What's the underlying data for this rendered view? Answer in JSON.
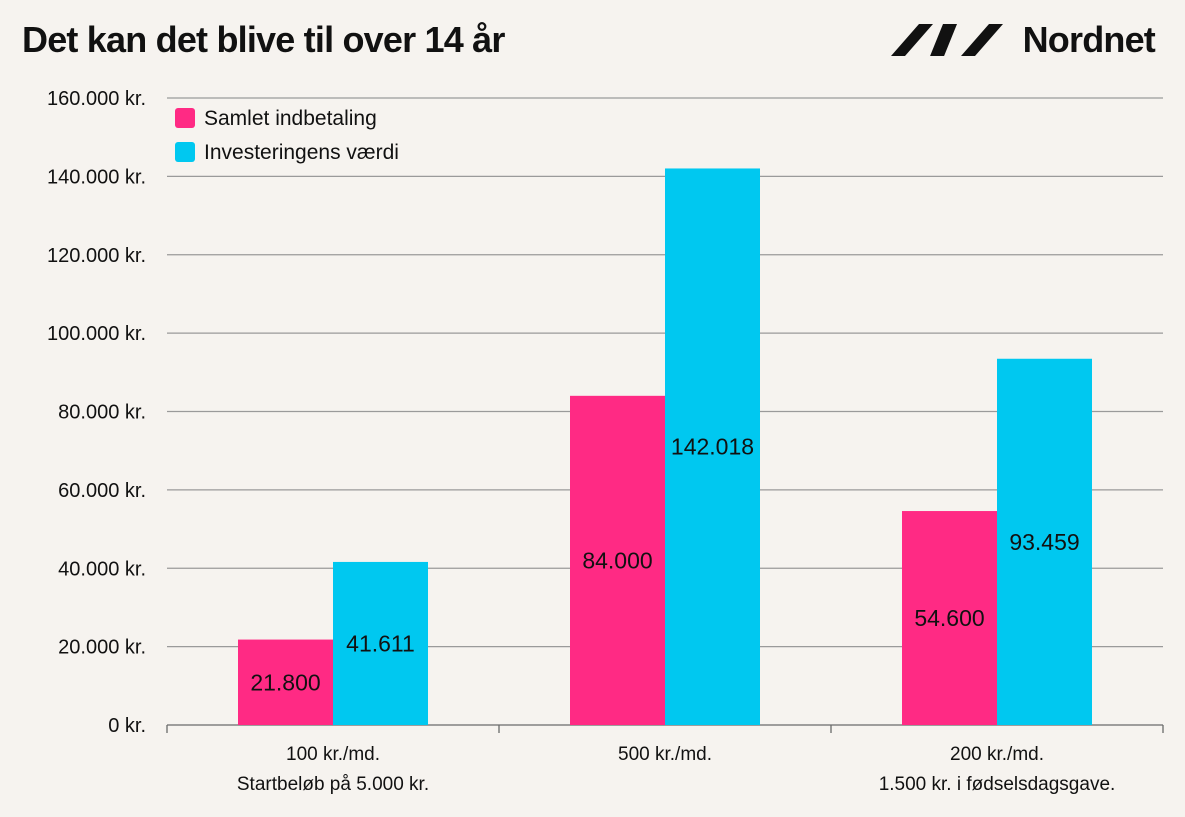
{
  "header": {
    "title": "Det kan det blive til over 14 år",
    "brand": "Nordnet",
    "logo_icon": "nordnet-logo-mark"
  },
  "colors": {
    "background": "#f6f3ef",
    "paid": "#ff2a84",
    "value": "#00c8f0",
    "grid": "#9a9a9a",
    "axis": "#6a6a6a"
  },
  "chart_data": {
    "type": "bar",
    "title": "Det kan det blive til over 14 år",
    "xlabel": "",
    "ylabel": "",
    "ylim": [
      0,
      160000
    ],
    "yticks": [
      0,
      20000,
      40000,
      60000,
      80000,
      100000,
      120000,
      140000,
      160000
    ],
    "ytick_labels": [
      "0 kr.",
      "20.000 kr.",
      "40.000 kr.",
      "60.000 kr.",
      "80.000 kr.",
      "100.000 kr.",
      "120.000 kr.",
      "140.000 kr.",
      "160.000 kr."
    ],
    "categories": [
      [
        "100 kr./md.",
        "Startbeløb på 5.000 kr."
      ],
      [
        "500 kr./md."
      ],
      [
        "200 kr./md.",
        "1.500 kr. i fødselsdagsgave."
      ]
    ],
    "series": [
      {
        "name": "Samlet indbetaling",
        "values": [
          21800,
          84000,
          54600
        ],
        "labels": [
          "21.800",
          "84.000",
          "54.600"
        ]
      },
      {
        "name": "Investeringens værdi",
        "values": [
          41611,
          142018,
          93459
        ],
        "labels": [
          "41.611",
          "142.018",
          "93.459"
        ]
      }
    ],
    "grid": true,
    "legend_position": "top-left"
  }
}
